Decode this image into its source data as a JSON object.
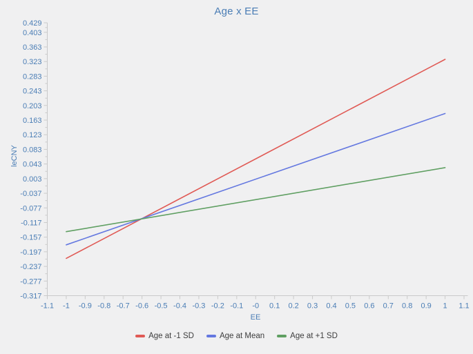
{
  "colors": {
    "background": "#f0f0f1",
    "axis_line": "#c9c9c9",
    "tick_label": "#4a7db5",
    "title_text": "#4a7db5",
    "legend_text": "#3d3d3d"
  },
  "chart_data": {
    "type": "line",
    "title": "Age x EE",
    "xlabel": "EE",
    "ylabel": "leCNY",
    "xlim": [
      -1.1,
      1.1
    ],
    "ylim": [
      -0.317,
      0.429
    ],
    "grid": false,
    "legend_position": "bottom",
    "x_ticks": [
      "-1.1",
      "-1",
      "-0.9",
      "-0.8",
      "-0.7",
      "-0.6",
      "-0.5",
      "-0.4",
      "-0.3",
      "-0.2",
      "-0.1",
      "-0",
      "0.1",
      "0.2",
      "0.3",
      "0.4",
      "0.5",
      "0.6",
      "0.7",
      "0.8",
      "0.9",
      "1",
      "1.1"
    ],
    "y_ticks": [
      "0.429",
      "0.403",
      "0.363",
      "0.323",
      "0.283",
      "0.243",
      "0.203",
      "0.163",
      "0.123",
      "0.083",
      "0.043",
      "0.003",
      "-0.037",
      "-0.077",
      "-0.117",
      "-0.157",
      "-0.197",
      "-0.237",
      "-0.277",
      "-0.317"
    ],
    "series": [
      {
        "name": "Age at -1 SD",
        "color": "#e05a55",
        "x": [
          -1,
          1
        ],
        "y": [
          -0.215,
          0.329
        ]
      },
      {
        "name": "Age at Mean",
        "color": "#6478e0",
        "x": [
          -1,
          1
        ],
        "y": [
          -0.178,
          0.181
        ]
      },
      {
        "name": "Age at +1 SD",
        "color": "#5f9f62",
        "x": [
          -1,
          1
        ],
        "y": [
          -0.142,
          0.033
        ]
      }
    ]
  }
}
